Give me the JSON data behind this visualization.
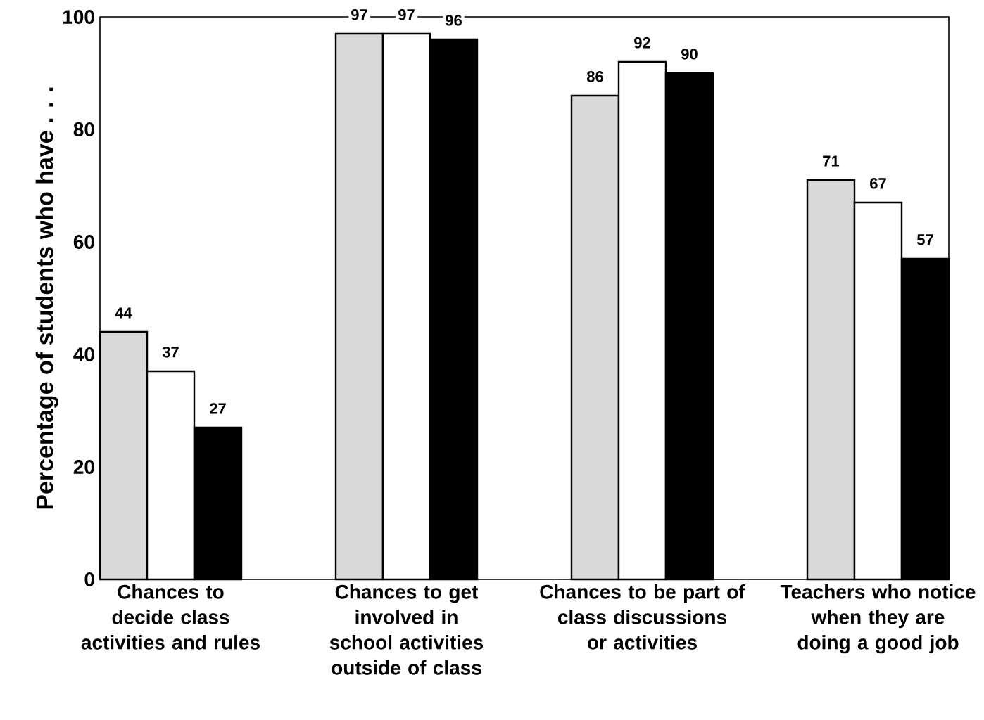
{
  "chart_data": {
    "type": "bar",
    "ylabel": "Percentage of students who have . . .",
    "categories": [
      "Chances to decide class activities and rules",
      "Chances to get involved in school activities outside of class",
      "Chances to be part of class discussions or activities",
      "Teachers who notice when they are doing a good job"
    ],
    "series": [
      {
        "color": "#d9d9d9",
        "values": [
          44,
          97,
          86,
          71
        ]
      },
      {
        "color": "#ffffff",
        "values": [
          37,
          97,
          92,
          67
        ]
      },
      {
        "color": "#000000",
        "values": [
          27,
          96,
          90,
          57
        ]
      }
    ],
    "ylim": [
      0,
      100
    ],
    "yticks": [
      0,
      20,
      40,
      60,
      80,
      100
    ],
    "data_labels": true
  }
}
